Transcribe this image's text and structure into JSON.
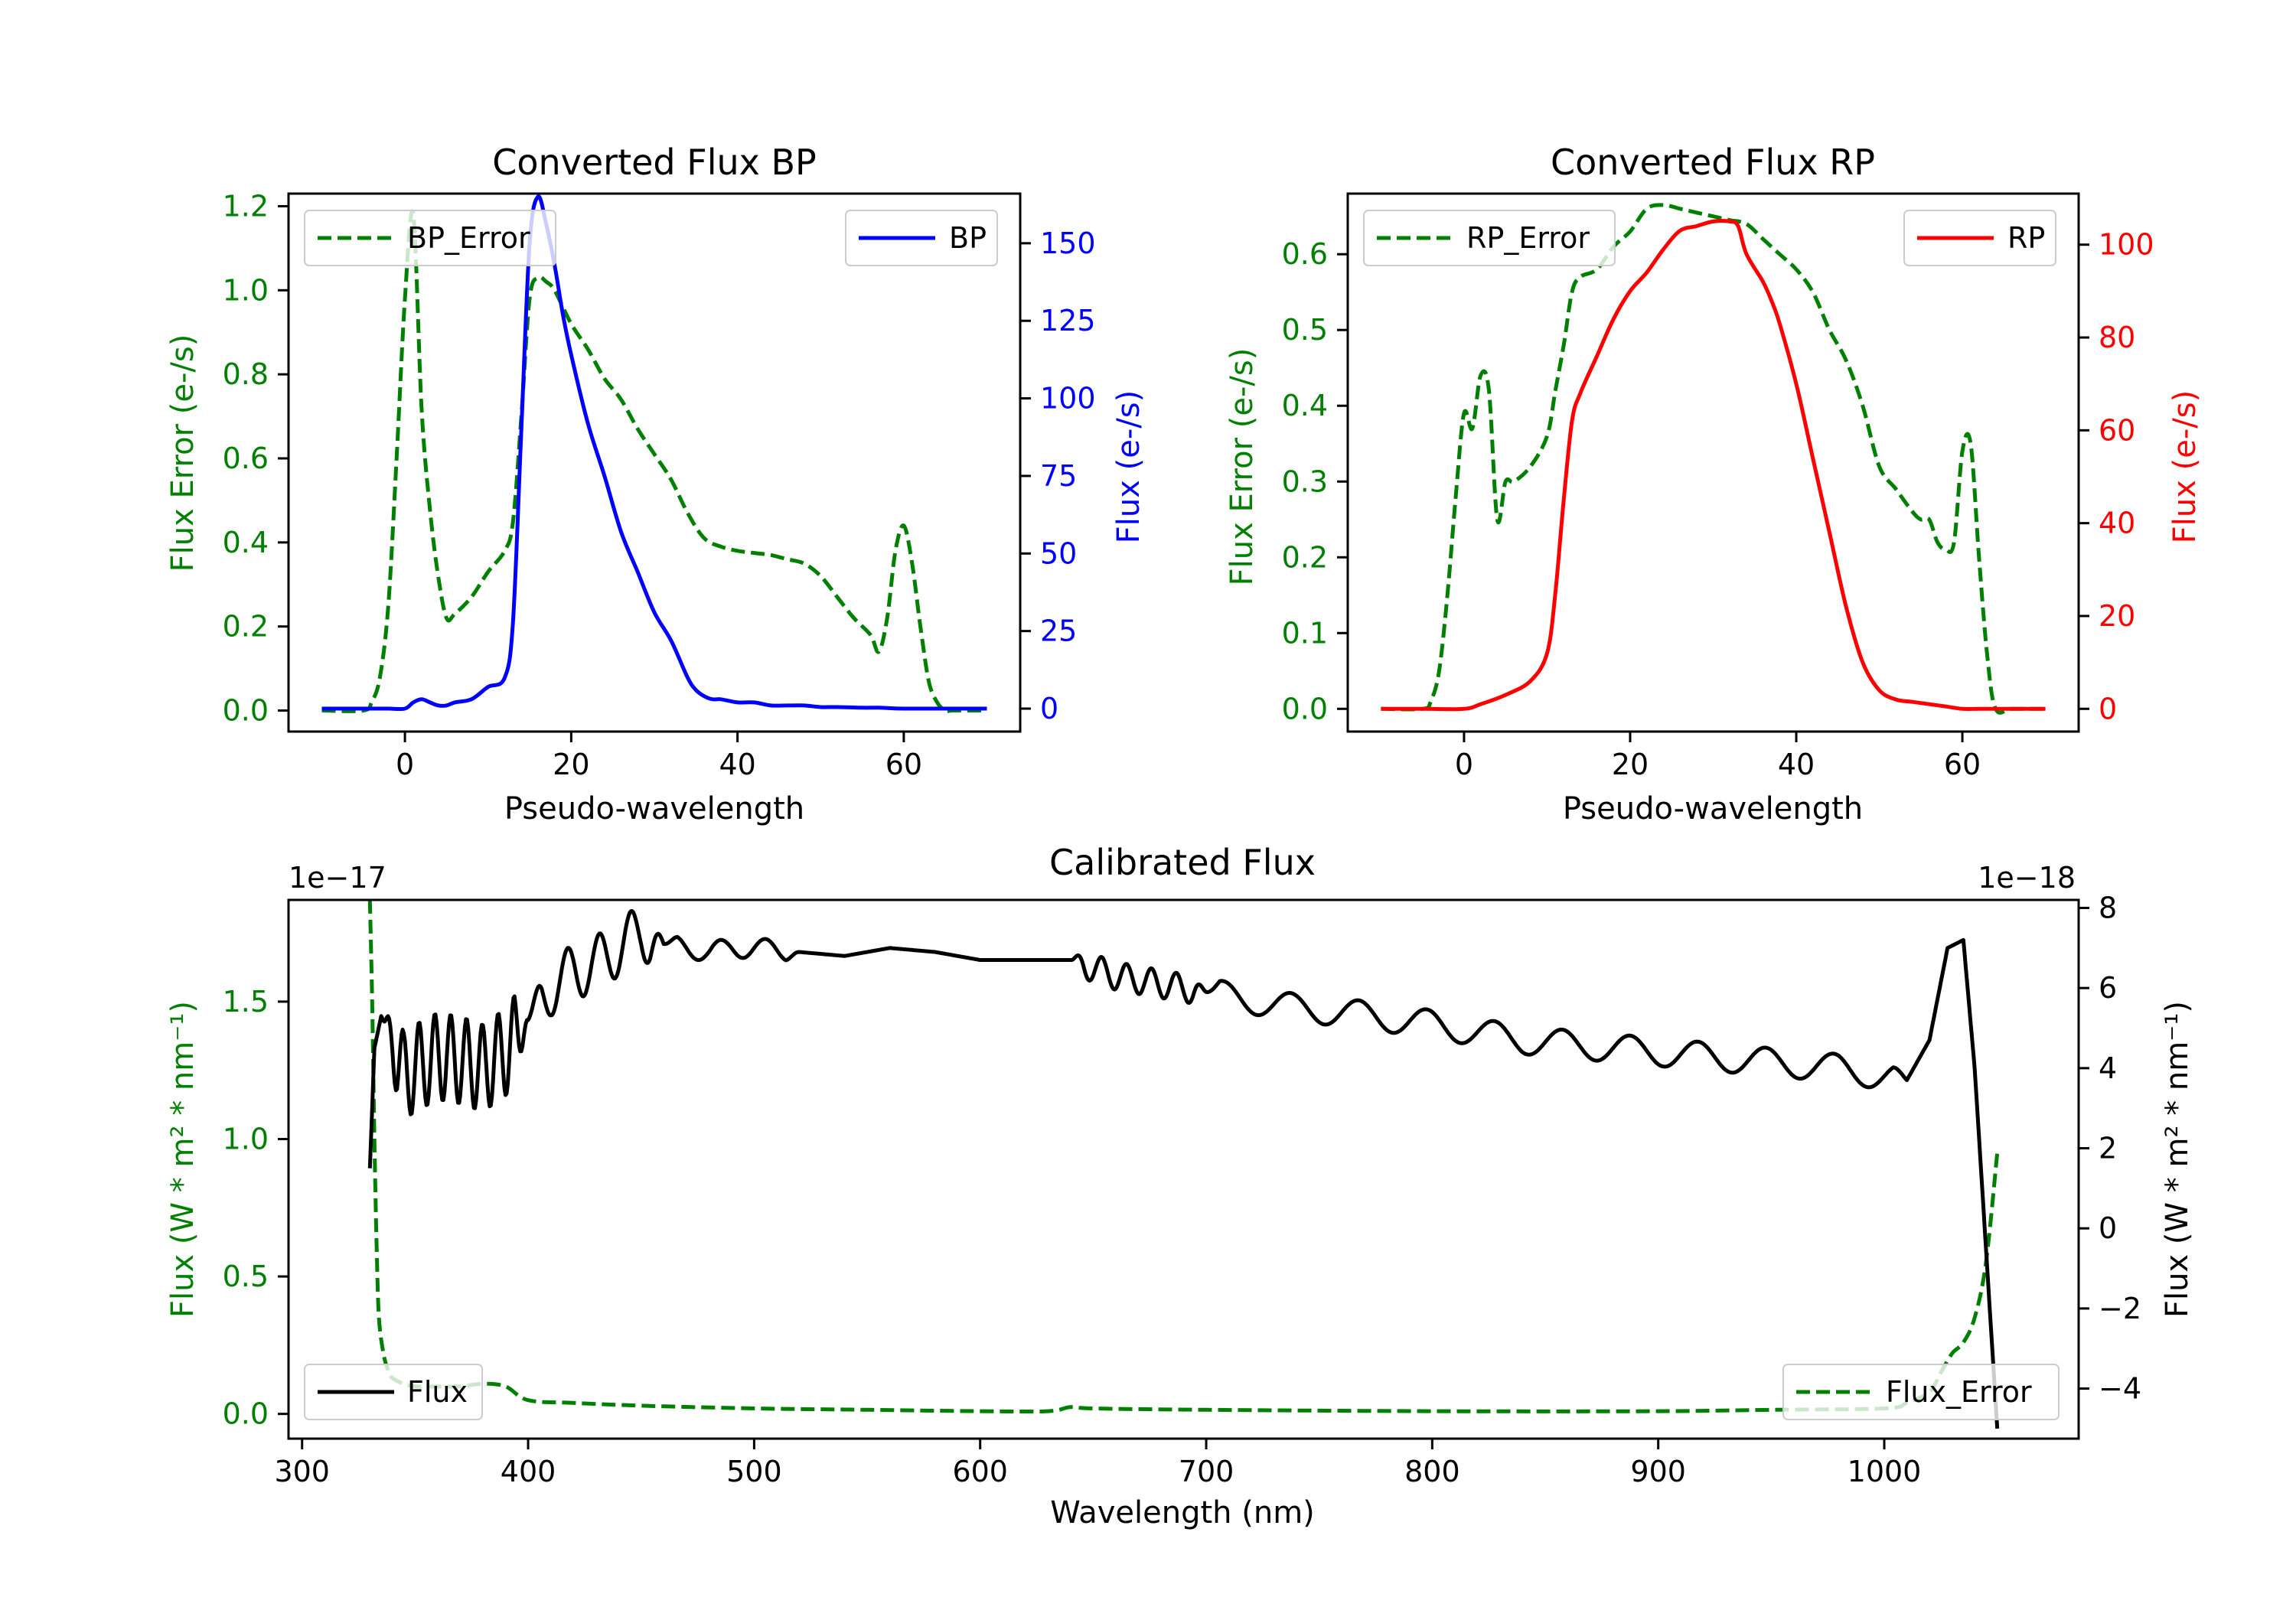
{
  "colors": {
    "error": "#008000",
    "bp": "#0000ff",
    "rp": "#ff0000",
    "flux": "#000000",
    "axis": "#000000"
  },
  "chart_data": [
    {
      "id": "bp",
      "type": "line",
      "title": "Converted Flux BP",
      "xlabel": "Pseudo-wavelength",
      "ylabel_left": "Flux Error (e-/s)",
      "ylabel_right": "Flux (e-/s)",
      "xlim": [
        -14,
        74
      ],
      "ylim_left": [
        -0.05,
        1.23
      ],
      "ylim_right": [
        -7.4,
        166
      ],
      "xticks": [
        0,
        20,
        40,
        60
      ],
      "yticks_left": [
        0.0,
        0.2,
        0.4,
        0.6,
        0.8,
        1.0,
        1.2
      ],
      "yticks_right": [
        0,
        25,
        50,
        75,
        100,
        125,
        150
      ],
      "legend_left": "BP_Error",
      "legend_right": "BP",
      "series_left": {
        "name": "BP_Error",
        "style": "dashed",
        "x": [
          -10,
          -5,
          -4,
          -3,
          -2,
          -1,
          0,
          1,
          2,
          3,
          4,
          5,
          6,
          8,
          10,
          12,
          13,
          14,
          15,
          16,
          17,
          18,
          20,
          22,
          24,
          26,
          28,
          30,
          32,
          34,
          36,
          38,
          40,
          42,
          44,
          46,
          48,
          50,
          52,
          54,
          56,
          57,
          58,
          59,
          60,
          61,
          62,
          63,
          64,
          65,
          66,
          70
        ],
        "y": [
          0.0,
          0.0,
          0.02,
          0.08,
          0.25,
          0.6,
          0.98,
          1.18,
          0.72,
          0.48,
          0.32,
          0.22,
          0.23,
          0.27,
          0.33,
          0.38,
          0.45,
          0.7,
          0.98,
          1.03,
          1.02,
          1.0,
          0.92,
          0.86,
          0.79,
          0.74,
          0.67,
          0.61,
          0.55,
          0.47,
          0.41,
          0.39,
          0.38,
          0.375,
          0.37,
          0.36,
          0.35,
          0.32,
          0.27,
          0.22,
          0.18,
          0.14,
          0.22,
          0.38,
          0.44,
          0.35,
          0.2,
          0.07,
          0.02,
          0.0,
          0.0,
          0.0
        ]
      },
      "series_right": {
        "name": "BP",
        "style": "solid",
        "x": [
          -10,
          -5,
          -2,
          0,
          1,
          2,
          3,
          4,
          5,
          6,
          8,
          10,
          12,
          13,
          14,
          15,
          16,
          17,
          18,
          19,
          20,
          22,
          24,
          26,
          28,
          30,
          32,
          34,
          35,
          36,
          37,
          38,
          40,
          42,
          44,
          46,
          48,
          50,
          52,
          55,
          57,
          58,
          60,
          65,
          70
        ],
        "y": [
          0,
          0,
          0,
          0,
          2,
          3,
          2,
          1,
          1,
          2,
          3,
          7,
          10,
          28,
          90,
          150,
          165,
          156,
          143,
          127,
          114,
          92,
          75,
          57,
          44,
          31,
          22,
          10,
          6,
          4,
          3,
          3,
          2,
          2,
          1,
          1,
          1,
          0.5,
          0.5,
          0.3,
          0.3,
          0.2,
          0,
          0,
          0
        ]
      }
    },
    {
      "id": "rp",
      "type": "line",
      "title": "Converted Flux RP",
      "xlabel": "Pseudo-wavelength",
      "ylabel_left": "Flux Error (e-/s)",
      "ylabel_right": "Flux (e-/s)",
      "xlim": [
        -14,
        74
      ],
      "ylim_left": [
        -0.03,
        0.68
      ],
      "ylim_right": [
        -4.9,
        111
      ],
      "xticks": [
        0,
        20,
        40,
        60
      ],
      "yticks_left": [
        0.0,
        0.1,
        0.2,
        0.3,
        0.4,
        0.5,
        0.6
      ],
      "yticks_right": [
        0,
        20,
        40,
        60,
        80,
        100
      ],
      "legend_left": "RP_Error",
      "legend_right": "RP",
      "series_left": {
        "name": "RP_Error",
        "style": "dashed",
        "x": [
          -10,
          -5,
          -4,
          -3,
          -2,
          -1,
          0,
          1,
          2,
          3,
          4,
          5,
          6,
          8,
          10,
          11,
          12,
          13,
          14,
          16,
          18,
          20,
          22,
          24,
          26,
          28,
          30,
          32,
          34,
          36,
          38,
          40,
          42,
          44,
          46,
          48,
          50,
          52,
          54,
          55,
          56,
          57,
          58,
          59,
          60,
          61,
          62,
          63,
          64,
          66,
          70
        ],
        "y": [
          0.0,
          0.0,
          0.01,
          0.05,
          0.15,
          0.28,
          0.39,
          0.37,
          0.44,
          0.42,
          0.25,
          0.3,
          0.3,
          0.32,
          0.36,
          0.42,
          0.48,
          0.55,
          0.57,
          0.58,
          0.61,
          0.63,
          0.66,
          0.665,
          0.66,
          0.655,
          0.65,
          0.645,
          0.64,
          0.62,
          0.6,
          0.58,
          0.55,
          0.5,
          0.46,
          0.4,
          0.32,
          0.29,
          0.26,
          0.25,
          0.25,
          0.22,
          0.21,
          0.22,
          0.34,
          0.35,
          0.2,
          0.07,
          0.0,
          0.0,
          0.0
        ]
      },
      "series_right": {
        "name": "RP",
        "style": "solid",
        "x": [
          -10,
          -5,
          0,
          2,
          5,
          8,
          10,
          11,
          12,
          13,
          14,
          16,
          18,
          20,
          22,
          24,
          26,
          28,
          30,
          32,
          33,
          34,
          36,
          37,
          38,
          40,
          42,
          44,
          46,
          48,
          50,
          52,
          54,
          56,
          58,
          60,
          62,
          65,
          70
        ],
        "y": [
          0,
          0,
          0,
          1,
          3,
          6,
          12,
          25,
          45,
          62,
          68,
          76,
          84,
          90,
          94,
          99,
          103,
          104,
          105,
          105,
          104,
          98,
          92,
          88,
          83,
          70,
          54,
          38,
          22,
          10,
          4,
          2,
          1.5,
          1,
          0.5,
          0,
          0,
          0,
          0
        ]
      }
    },
    {
      "id": "cal",
      "type": "line",
      "title": "Calibrated Flux",
      "xlabel": "Wavelength (nm)",
      "ylabel_left": "Flux (W * m² * nm⁻¹)",
      "ylabel_right": "Flux (W * m² * nm⁻¹)",
      "offset_left": "1e−17",
      "offset_right": "1e−18",
      "xlim": [
        294,
        1086
      ],
      "ylim_left": [
        -0.09,
        1.87
      ],
      "ylim_right": [
        -5.25,
        8.2
      ],
      "xticks": [
        300,
        400,
        500,
        600,
        700,
        800,
        900,
        1000
      ],
      "yticks_left": [
        0.0,
        0.5,
        1.0,
        1.5
      ],
      "yticks_right": [
        -4,
        -2,
        0,
        2,
        4,
        6,
        8
      ],
      "legend_left": "Flux",
      "legend_right": "Flux_Error",
      "flux_anchor": {
        "x": [
          330,
          332,
          335,
          340,
          345,
          350,
          360,
          370,
          380,
          390,
          400,
          410,
          420,
          430,
          440,
          450,
          460,
          470,
          480,
          490,
          500,
          520,
          540,
          560,
          580,
          600,
          620,
          640,
          660,
          680,
          700,
          720,
          740,
          760,
          780,
          800,
          820,
          840,
          860,
          880,
          900,
          920,
          940,
          960,
          980,
          1000,
          1010,
          1020,
          1028,
          1035,
          1040,
          1045,
          1050
        ],
        "y": [
          1.5,
          4.5,
          5.3,
          4.7,
          3.8,
          4.0,
          4.3,
          4.2,
          4.0,
          4.4,
          5.2,
          6.0,
          6.4,
          6.6,
          7.0,
          7.4,
          7.1,
          7.0,
          6.9,
          7.0,
          7.0,
          6.9,
          6.8,
          7.0,
          6.9,
          6.7,
          6.7,
          6.7,
          6.3,
          6.1,
          5.9,
          5.7,
          5.5,
          5.4,
          5.25,
          5.1,
          4.9,
          4.7,
          4.6,
          4.5,
          4.4,
          4.3,
          4.2,
          4.1,
          4.0,
          3.8,
          3.7,
          4.7,
          7.0,
          7.2,
          4.0,
          -0.5,
          -5.0
        ]
      },
      "flux_wiggles": [
        {
          "x": [
            336,
            400
          ],
          "amp": 1.1,
          "period": 7
        },
        {
          "x": [
            400,
            460
          ],
          "amp": 0.7,
          "period": 14
        },
        {
          "x": [
            460,
            520
          ],
          "amp": 0.25,
          "period": 20
        },
        {
          "x": [
            640,
            700
          ],
          "amp": 0.35,
          "period": 11
        },
        {
          "x": [
            700,
            1010
          ],
          "amp": 0.35,
          "period": 30
        }
      ],
      "error_series": {
        "name": "Flux_Error",
        "style": "dashed",
        "x": [
          330,
          331,
          332,
          333,
          334,
          336,
          338,
          340,
          345,
          350,
          360,
          370,
          380,
          390,
          400,
          420,
          450,
          500,
          550,
          600,
          630,
          640,
          650,
          700,
          800,
          900,
          950,
          1000,
          1010,
          1020,
          1025,
          1030,
          1035,
          1040,
          1045,
          1050
        ],
        "y": [
          1.87,
          1.5,
          1.0,
          0.6,
          0.35,
          0.22,
          0.16,
          0.13,
          0.11,
          0.1,
          0.1,
          0.1,
          0.11,
          0.1,
          0.05,
          0.04,
          0.03,
          0.02,
          0.015,
          0.01,
          0.01,
          0.025,
          0.02,
          0.015,
          0.01,
          0.01,
          0.015,
          0.02,
          0.04,
          0.08,
          0.15,
          0.22,
          0.26,
          0.35,
          0.55,
          0.95
        ]
      }
    }
  ]
}
